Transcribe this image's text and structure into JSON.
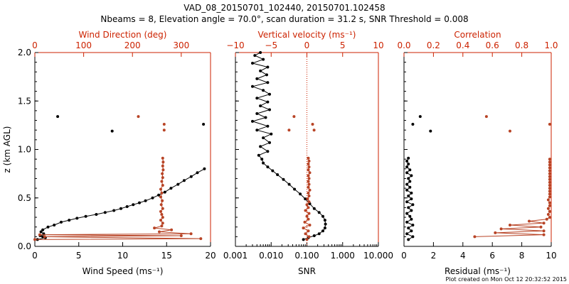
{
  "title": {
    "line1": "VAD_08_20150701_102440, 20150701.102458",
    "line2": "Nbeams = 8, Elevation angle = 70.0°, scan duration = 31.2 s, SNR Threshold = 0.008"
  },
  "footer": "Plot created on Mon Oct 12 20:32:52 2015",
  "colors": {
    "black": "#000000",
    "red": "#cc2200",
    "rust": "#b84426"
  },
  "chart_data": [
    {
      "type": "scatter",
      "ylabel": "z (km AGL)",
      "ylim": [
        0,
        2
      ],
      "yticks": [
        "0.0",
        "0.5",
        "1.0",
        "1.5",
        "2.0"
      ],
      "bottom_axis": {
        "label": "Wind Speed (ms⁻¹)",
        "range": [
          0,
          20
        ],
        "ticks": [
          "0",
          "5",
          "10",
          "15",
          "20"
        ]
      },
      "top_axis": {
        "label": "Wind Direction (deg)",
        "range": [
          0,
          360
        ],
        "ticks": [
          "0",
          "100",
          "200",
          "300"
        ]
      },
      "series": [
        {
          "axis": "bottom",
          "color": "#000000",
          "connected": true,
          "points": [
            [
              0.3,
              0.07
            ],
            [
              1.2,
              0.09
            ],
            [
              0.9,
              0.1
            ],
            [
              0.6,
              0.11
            ],
            [
              1.0,
              0.13
            ],
            [
              0.7,
              0.15
            ],
            [
              0.9,
              0.17
            ],
            [
              1.5,
              0.2
            ],
            [
              2.2,
              0.22
            ],
            [
              3.0,
              0.25
            ],
            [
              3.9,
              0.27
            ],
            [
              4.8,
              0.29
            ],
            [
              5.8,
              0.31
            ],
            [
              7.0,
              0.33
            ],
            [
              8.0,
              0.35
            ],
            [
              9.0,
              0.37
            ],
            [
              9.8,
              0.39
            ],
            [
              10.5,
              0.41
            ],
            [
              11.2,
              0.43
            ],
            [
              11.9,
              0.45
            ],
            [
              12.6,
              0.47
            ],
            [
              13.4,
              0.5
            ],
            [
              14.1,
              0.53
            ],
            [
              14.8,
              0.56
            ],
            [
              15.5,
              0.6
            ],
            [
              16.3,
              0.64
            ],
            [
              17.0,
              0.68
            ],
            [
              17.8,
              0.72
            ],
            [
              18.5,
              0.76
            ],
            [
              19.3,
              0.8
            ]
          ]
        },
        {
          "axis": "bottom",
          "color": "#000000",
          "connected": false,
          "points": [
            [
              2.6,
              1.34
            ],
            [
              8.8,
              1.19
            ],
            [
              19.2,
              1.26
            ]
          ]
        },
        {
          "axis": "top",
          "color": "#b84426",
          "connected": true,
          "points": [
            [
              0,
              0.07
            ],
            [
              340,
              0.08
            ],
            [
              20,
              0.1
            ],
            [
              300,
              0.11
            ],
            [
              10,
              0.12
            ],
            [
              320,
              0.13
            ],
            [
              255,
              0.15
            ],
            [
              280,
              0.17
            ],
            [
              245,
              0.19
            ],
            [
              260,
              0.21
            ],
            [
              262,
              0.24
            ],
            [
              258,
              0.27
            ],
            [
              262,
              0.3
            ],
            [
              260,
              0.33
            ],
            [
              258,
              0.36
            ],
            [
              262,
              0.39
            ],
            [
              259,
              0.43
            ],
            [
              261,
              0.47
            ],
            [
              258,
              0.51
            ],
            [
              260,
              0.55
            ],
            [
              258,
              0.59
            ],
            [
              262,
              0.63
            ],
            [
              260,
              0.67
            ],
            [
              262,
              0.71
            ],
            [
              261,
              0.75
            ],
            [
              263,
              0.79
            ],
            [
              262,
              0.83
            ],
            [
              263,
              0.87
            ],
            [
              262,
              0.91
            ]
          ]
        },
        {
          "axis": "top",
          "color": "#b84426",
          "connected": false,
          "points": [
            [
              212,
              1.34
            ],
            [
              265,
              1.26
            ],
            [
              265,
              1.2
            ]
          ]
        }
      ]
    },
    {
      "type": "scatter",
      "ylim": [
        0,
        2
      ],
      "bottom_axis": {
        "label": "SNR",
        "scale": "log",
        "range": [
          0.001,
          10
        ],
        "ticks": [
          "0.001",
          "0.010",
          "0.100",
          "1.000",
          "10.000"
        ]
      },
      "top_axis": {
        "label": "Vertical velocity (ms⁻¹)",
        "range": [
          -10,
          10
        ],
        "ticks": [
          "−10",
          "−5",
          "0",
          "5",
          "10"
        ],
        "reference_line": 0
      },
      "series": [
        {
          "axis": "bottom",
          "color": "#000000",
          "connected": true,
          "points": [
            [
              0.08,
              0.07
            ],
            [
              0.11,
              0.09
            ],
            [
              0.16,
              0.11
            ],
            [
              0.22,
              0.13
            ],
            [
              0.28,
              0.16
            ],
            [
              0.32,
              0.19
            ],
            [
              0.33,
              0.23
            ],
            [
              0.32,
              0.27
            ],
            [
              0.28,
              0.31
            ],
            [
              0.22,
              0.35
            ],
            [
              0.16,
              0.39
            ],
            [
              0.12,
              0.44
            ],
            [
              0.09,
              0.49
            ],
            [
              0.065,
              0.54
            ],
            [
              0.045,
              0.59
            ],
            [
              0.032,
              0.64
            ],
            [
              0.022,
              0.69
            ],
            [
              0.015,
              0.74
            ],
            [
              0.011,
              0.78
            ],
            [
              0.008,
              0.82
            ],
            [
              0.006,
              0.86
            ],
            [
              0.0055,
              0.9
            ],
            [
              0.0045,
              0.94
            ],
            [
              0.008,
              0.98
            ],
            [
              0.005,
              1.03
            ],
            [
              0.009,
              1.07
            ],
            [
              0.006,
              1.12
            ],
            [
              0.01,
              1.16
            ],
            [
              0.004,
              1.2
            ],
            [
              0.008,
              1.24
            ],
            [
              0.003,
              1.29
            ],
            [
              0.007,
              1.33
            ],
            [
              0.004,
              1.37
            ],
            [
              0.009,
              1.41
            ],
            [
              0.005,
              1.45
            ],
            [
              0.008,
              1.49
            ],
            [
              0.004,
              1.53
            ],
            [
              0.009,
              1.57
            ],
            [
              0.006,
              1.61
            ],
            [
              0.003,
              1.65
            ],
            [
              0.008,
              1.69
            ],
            [
              0.004,
              1.73
            ],
            [
              0.0075,
              1.77
            ],
            [
              0.005,
              1.81
            ],
            [
              0.008,
              1.85
            ],
            [
              0.003,
              1.89
            ],
            [
              0.006,
              1.93
            ],
            [
              0.0035,
              1.97
            ],
            [
              0.005,
              2.0
            ]
          ]
        },
        {
          "axis": "top",
          "color": "#b84426",
          "connected": true,
          "points": [
            [
              0.0,
              0.07
            ],
            [
              0.3,
              0.1
            ],
            [
              -0.2,
              0.13
            ],
            [
              0.2,
              0.16
            ],
            [
              -0.5,
              0.19
            ],
            [
              0.4,
              0.22
            ],
            [
              -0.3,
              0.25
            ],
            [
              0.2,
              0.28
            ],
            [
              0.0,
              0.31
            ],
            [
              0.3,
              0.34
            ],
            [
              -0.2,
              0.37
            ],
            [
              0.2,
              0.4
            ],
            [
              0.0,
              0.43
            ],
            [
              0.3,
              0.46
            ],
            [
              0.1,
              0.49
            ],
            [
              0.3,
              0.52
            ],
            [
              0.2,
              0.55
            ],
            [
              0.4,
              0.58
            ],
            [
              0.2,
              0.61
            ],
            [
              0.3,
              0.64
            ],
            [
              0.2,
              0.67
            ],
            [
              0.3,
              0.7
            ],
            [
              0.2,
              0.73
            ],
            [
              0.4,
              0.76
            ],
            [
              0.2,
              0.79
            ],
            [
              0.3,
              0.82
            ],
            [
              0.2,
              0.85
            ],
            [
              0.3,
              0.88
            ],
            [
              0.2,
              0.91
            ]
          ]
        },
        {
          "axis": "top",
          "color": "#b84426",
          "connected": false,
          "points": [
            [
              -1.8,
              1.34
            ],
            [
              0.8,
              1.26
            ],
            [
              -2.5,
              1.2
            ],
            [
              1.0,
              1.2
            ]
          ]
        }
      ]
    },
    {
      "type": "scatter",
      "ylim": [
        0,
        2
      ],
      "bottom_axis": {
        "label": "Residual (ms⁻¹)",
        "range": [
          0,
          10
        ],
        "ticks": [
          "0",
          "2",
          "4",
          "6",
          "8",
          "10"
        ]
      },
      "top_axis": {
        "label": "Correlation",
        "range": [
          0,
          1
        ],
        "ticks": [
          "0.0",
          "0.2",
          "0.4",
          "0.6",
          "0.8",
          "1.0"
        ]
      },
      "series": [
        {
          "axis": "bottom",
          "color": "#000000",
          "connected": true,
          "points": [
            [
              0.3,
              0.07
            ],
            [
              0.6,
              0.1
            ],
            [
              0.2,
              0.13
            ],
            [
              0.5,
              0.16
            ],
            [
              0.3,
              0.19
            ],
            [
              0.6,
              0.22
            ],
            [
              0.2,
              0.25
            ],
            [
              0.5,
              0.28
            ],
            [
              0.4,
              0.31
            ],
            [
              0.2,
              0.34
            ],
            [
              0.5,
              0.37
            ],
            [
              0.3,
              0.4
            ],
            [
              0.6,
              0.43
            ],
            [
              0.2,
              0.46
            ],
            [
              0.5,
              0.49
            ],
            [
              0.3,
              0.52
            ],
            [
              0.5,
              0.55
            ],
            [
              0.2,
              0.58
            ],
            [
              0.4,
              0.61
            ],
            [
              0.2,
              0.64
            ],
            [
              0.4,
              0.67
            ],
            [
              0.3,
              0.7
            ],
            [
              0.5,
              0.73
            ],
            [
              0.2,
              0.76
            ],
            [
              0.4,
              0.79
            ],
            [
              0.2,
              0.82
            ],
            [
              0.3,
              0.85
            ],
            [
              0.2,
              0.88
            ],
            [
              0.3,
              0.91
            ]
          ]
        },
        {
          "axis": "bottom",
          "color": "#000000",
          "connected": false,
          "points": [
            [
              1.1,
              1.34
            ],
            [
              0.6,
              1.26
            ],
            [
              1.8,
              1.19
            ]
          ]
        },
        {
          "axis": "top",
          "color": "#b84426",
          "connected": true,
          "points": [
            [
              0.48,
              0.1
            ],
            [
              0.95,
              0.12
            ],
            [
              0.62,
              0.14
            ],
            [
              0.95,
              0.16
            ],
            [
              0.66,
              0.18
            ],
            [
              0.93,
              0.2
            ],
            [
              0.72,
              0.22
            ],
            [
              0.95,
              0.24
            ],
            [
              0.85,
              0.26
            ],
            [
              0.97,
              0.28
            ],
            [
              0.99,
              0.3
            ],
            [
              0.98,
              0.33
            ],
            [
              0.99,
              0.36
            ],
            [
              0.98,
              0.39
            ],
            [
              0.99,
              0.42
            ],
            [
              0.99,
              0.45
            ],
            [
              0.98,
              0.48
            ],
            [
              0.99,
              0.51
            ],
            [
              0.99,
              0.54
            ],
            [
              0.99,
              0.57
            ],
            [
              0.99,
              0.6
            ],
            [
              0.99,
              0.63
            ],
            [
              0.99,
              0.66
            ],
            [
              0.99,
              0.69
            ],
            [
              0.99,
              0.72
            ],
            [
              0.99,
              0.75
            ],
            [
              0.99,
              0.78
            ],
            [
              0.99,
              0.81
            ],
            [
              0.99,
              0.84
            ],
            [
              0.99,
              0.87
            ],
            [
              0.99,
              0.9
            ]
          ]
        },
        {
          "axis": "top",
          "color": "#b84426",
          "connected": false,
          "points": [
            [
              0.56,
              1.34
            ],
            [
              0.72,
              1.19
            ],
            [
              0.99,
              1.26
            ]
          ]
        }
      ]
    }
  ]
}
